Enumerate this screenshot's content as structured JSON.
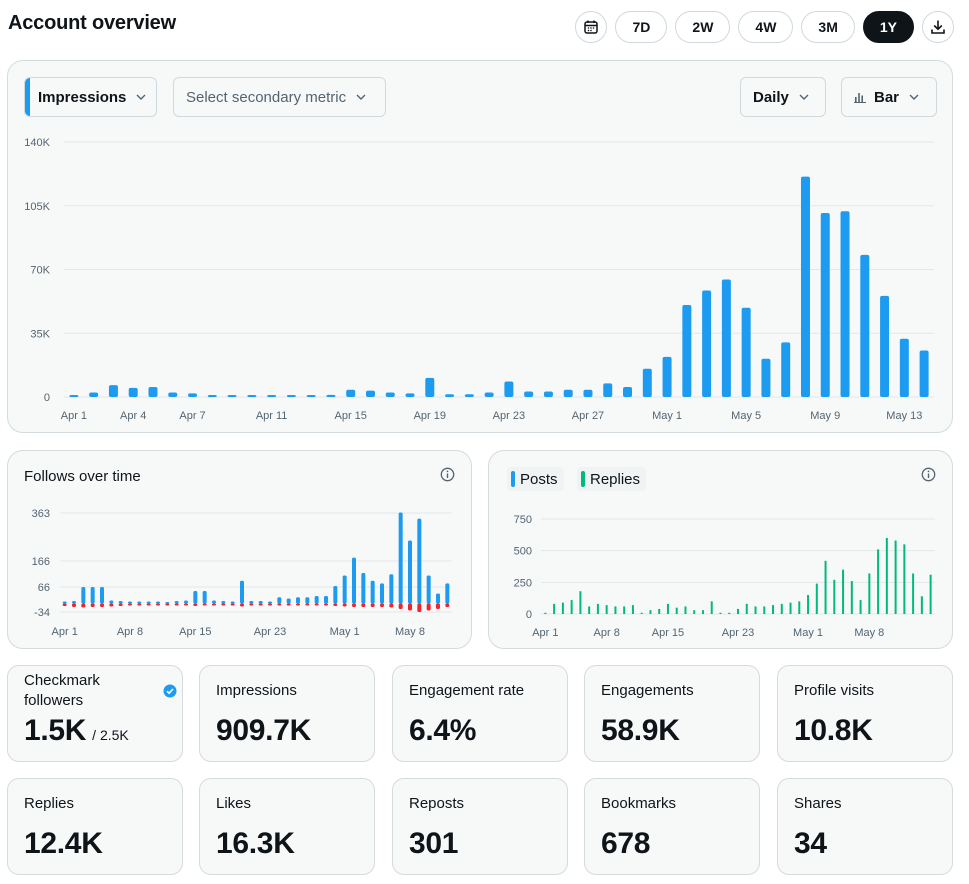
{
  "header": {
    "title": "Account overview"
  },
  "range": {
    "options": [
      "7D",
      "2W",
      "4W",
      "3M",
      "1Y"
    ],
    "selected": "1Y",
    "calendar_icon": "calendar-icon",
    "download_icon": "download-icon"
  },
  "main": {
    "primary_metric": "Impressions",
    "secondary_placeholder": "Select secondary metric",
    "granularity": "Daily",
    "chart_type_label": "Bar",
    "accent": "#1d9bf0"
  },
  "follows": {
    "title": "Follows over time",
    "follow_color": "#1d9bf0",
    "unfollow_color": "#f4212e"
  },
  "posts": {
    "legend": [
      {
        "name": "Posts",
        "color": "#1d9bf0"
      },
      {
        "name": "Replies",
        "color": "#00ba7c"
      }
    ]
  },
  "stats": [
    {
      "label": "Checkmark followers",
      "value": "1.5K",
      "sub": "/ 2.5K",
      "verified": true
    },
    {
      "label": "Impressions",
      "value": "909.7K"
    },
    {
      "label": "Engagement rate",
      "value": "6.4%"
    },
    {
      "label": "Engagements",
      "value": "58.9K"
    },
    {
      "label": "Profile visits",
      "value": "10.8K"
    },
    {
      "label": "Replies",
      "value": "12.4K"
    },
    {
      "label": "Likes",
      "value": "16.3K"
    },
    {
      "label": "Reposts",
      "value": "301"
    },
    {
      "label": "Bookmarks",
      "value": "678"
    },
    {
      "label": "Shares",
      "value": "34"
    }
  ],
  "chart_data": [
    {
      "type": "bar",
      "series_name": "Impressions",
      "y_ticks": [
        "0",
        "35K",
        "70K",
        "105K",
        "140K"
      ],
      "ylim": [
        0,
        140000
      ],
      "x_tick_labels": [
        {
          "label": "Apr 1",
          "index": 0
        },
        {
          "label": "Apr 4",
          "index": 3
        },
        {
          "label": "Apr 7",
          "index": 6
        },
        {
          "label": "Apr 11",
          "index": 10
        },
        {
          "label": "Apr 15",
          "index": 14
        },
        {
          "label": "Apr 19",
          "index": 18
        },
        {
          "label": "Apr 23",
          "index": 22
        },
        {
          "label": "Apr 27",
          "index": 26
        },
        {
          "label": "May 1",
          "index": 30
        },
        {
          "label": "May 5",
          "index": 34
        },
        {
          "label": "May 9",
          "index": 38
        },
        {
          "label": "May 13",
          "index": 42
        }
      ],
      "values": [
        500,
        2500,
        6500,
        5000,
        5500,
        2500,
        2000,
        1000,
        800,
        600,
        500,
        500,
        800,
        1200,
        4000,
        3500,
        2500,
        2000,
        10500,
        1500,
        1500,
        2500,
        8500,
        3000,
        3000,
        4000,
        4000,
        7500,
        5500,
        15500,
        22000,
        50500,
        58500,
        64500,
        49000,
        21000,
        30000,
        121000,
        101000,
        102000,
        78000,
        55500,
        32000,
        25500
      ]
    },
    {
      "type": "bar",
      "series": [
        {
          "name": "Follows",
          "values": [
            8,
            10,
            66,
            66,
            66,
            12,
            10,
            8,
            8,
            8,
            8,
            6,
            10,
            12,
            50,
            50,
            12,
            10,
            8,
            90,
            10,
            10,
            8,
            25,
            20,
            25,
            25,
            30,
            30,
            70,
            110,
            180,
            120,
            90,
            80,
            115,
            365,
            250,
            340,
            110,
            40,
            80
          ]
        },
        {
          "name": "Unfollows",
          "values": [
            -10,
            -14,
            -16,
            -14,
            -14,
            -12,
            -10,
            -8,
            -8,
            -8,
            -8,
            -8,
            -8,
            -8,
            -10,
            -8,
            -8,
            -8,
            -8,
            -12,
            -8,
            -8,
            -8,
            -8,
            -8,
            -8,
            -8,
            -8,
            -8,
            -10,
            -12,
            -14,
            -14,
            -14,
            -14,
            -16,
            -22,
            -28,
            -34,
            -28,
            -22,
            -14
          ]
        }
      ],
      "y_ticks": [
        "-34",
        "66",
        "166",
        "363"
      ],
      "y_tick_values": [
        -34,
        66,
        166,
        363
      ],
      "x_tick_labels": [
        "Apr 1",
        "Apr 8",
        "Apr 15",
        "Apr 23",
        "May 1",
        "May 8"
      ]
    },
    {
      "type": "bar",
      "series": [
        {
          "name": "Posts",
          "values": []
        },
        {
          "name": "Replies",
          "values": [
            10,
            80,
            90,
            110,
            180,
            60,
            80,
            70,
            60,
            60,
            70,
            10,
            30,
            40,
            80,
            50,
            60,
            30,
            30,
            100,
            10,
            10,
            40,
            80,
            60,
            60,
            70,
            80,
            90,
            100,
            150,
            240,
            420,
            270,
            350,
            260,
            110,
            320,
            510,
            600,
            580,
            550,
            320,
            140,
            310
          ]
        }
      ],
      "y_ticks": [
        "0",
        "250",
        "500",
        "750"
      ],
      "ylim": [
        0,
        750
      ],
      "x_tick_labels": [
        "Apr 1",
        "Apr 8",
        "Apr 15",
        "Apr 23",
        "May 1",
        "May 8"
      ]
    }
  ]
}
